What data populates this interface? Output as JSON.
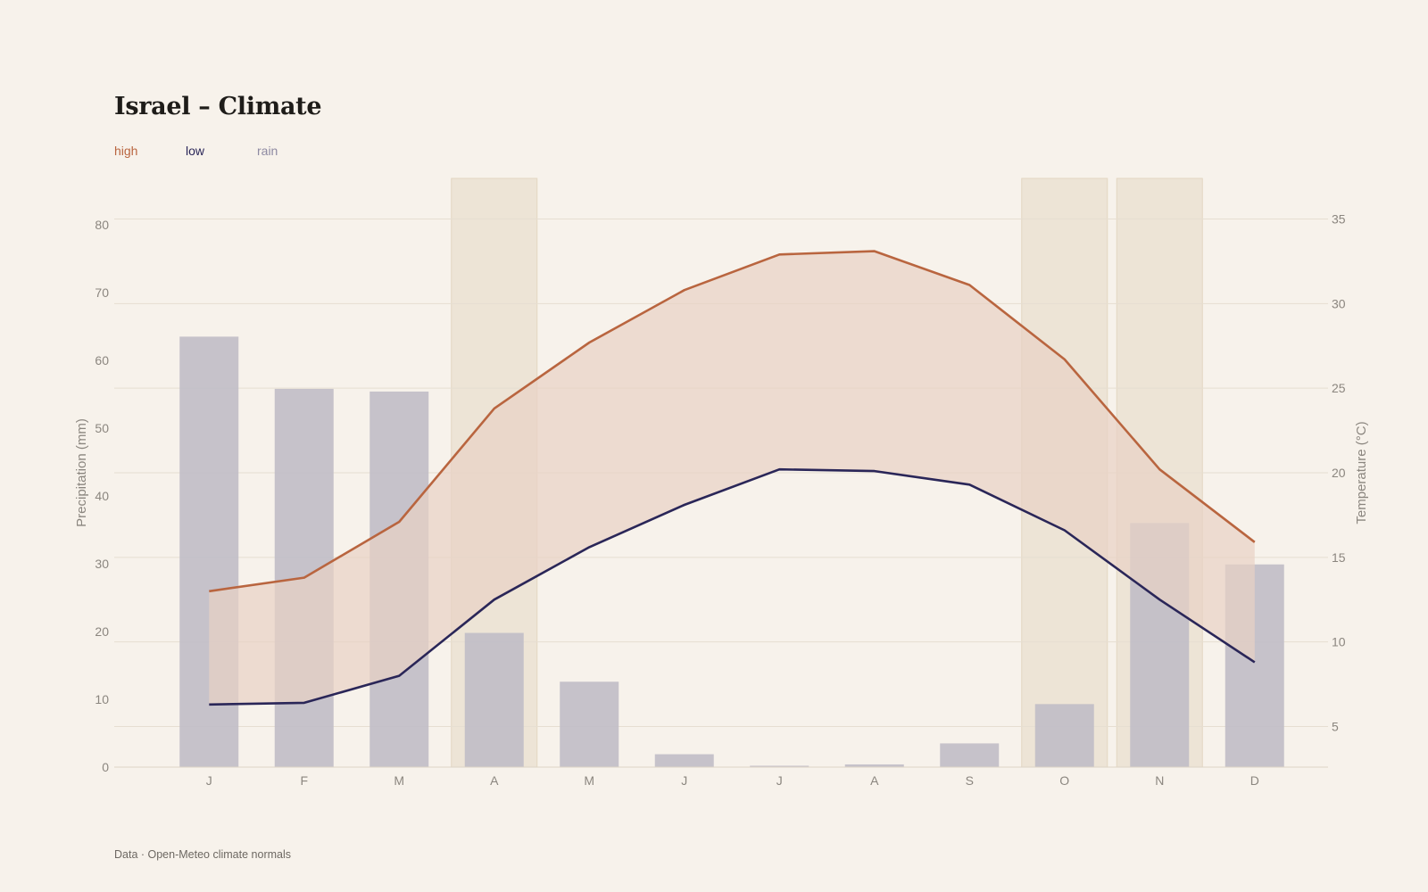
{
  "title": "Israel – Climate",
  "legend": [
    {
      "label": "high",
      "color": "#b9653f"
    },
    {
      "label": "low",
      "color": "#2a2658"
    },
    {
      "label": "rain",
      "color": "#8e8aa2"
    }
  ],
  "source": "Data · Open-Meteo climate normals",
  "chart_data": {
    "type": "bar+line",
    "categories": [
      "J",
      "F",
      "M",
      "A",
      "M",
      "J",
      "J",
      "A",
      "S",
      "O",
      "N",
      "D"
    ],
    "series": [
      {
        "name": "rain",
        "axis": "left",
        "kind": "bar",
        "color": "#c0bcc6",
        "values": [
          63.5,
          55.8,
          55.4,
          19.8,
          12.6,
          1.9,
          0.2,
          0.4,
          3.5,
          9.3,
          36.0,
          29.9
        ]
      },
      {
        "name": "high",
        "axis": "right",
        "kind": "line",
        "color": "#b9653f",
        "values": [
          13.0,
          13.8,
          17.1,
          23.8,
          27.7,
          30.8,
          32.9,
          33.1,
          31.1,
          26.7,
          20.2,
          15.9
        ]
      },
      {
        "name": "low",
        "axis": "right",
        "kind": "line",
        "color": "#2a2658",
        "values": [
          6.3,
          6.4,
          8.0,
          12.5,
          15.6,
          18.1,
          20.2,
          20.1,
          19.3,
          16.6,
          12.5,
          8.8
        ]
      }
    ],
    "band_fill": "#e8d2c4",
    "highlight_months": [
      3,
      9,
      10
    ],
    "highlight_color": "#ede4d6",
    "y_left": {
      "label": "Precipitation (mm)",
      "min": 0,
      "max": 80,
      "ticks": [
        0,
        10,
        20,
        30,
        40,
        50,
        60,
        70,
        80
      ]
    },
    "y_right": {
      "label": "Temperature (°C)",
      "min": 2.6,
      "max": 37.4,
      "ticks": [
        5,
        10,
        15,
        20,
        25,
        30,
        35
      ]
    },
    "grid": true
  }
}
